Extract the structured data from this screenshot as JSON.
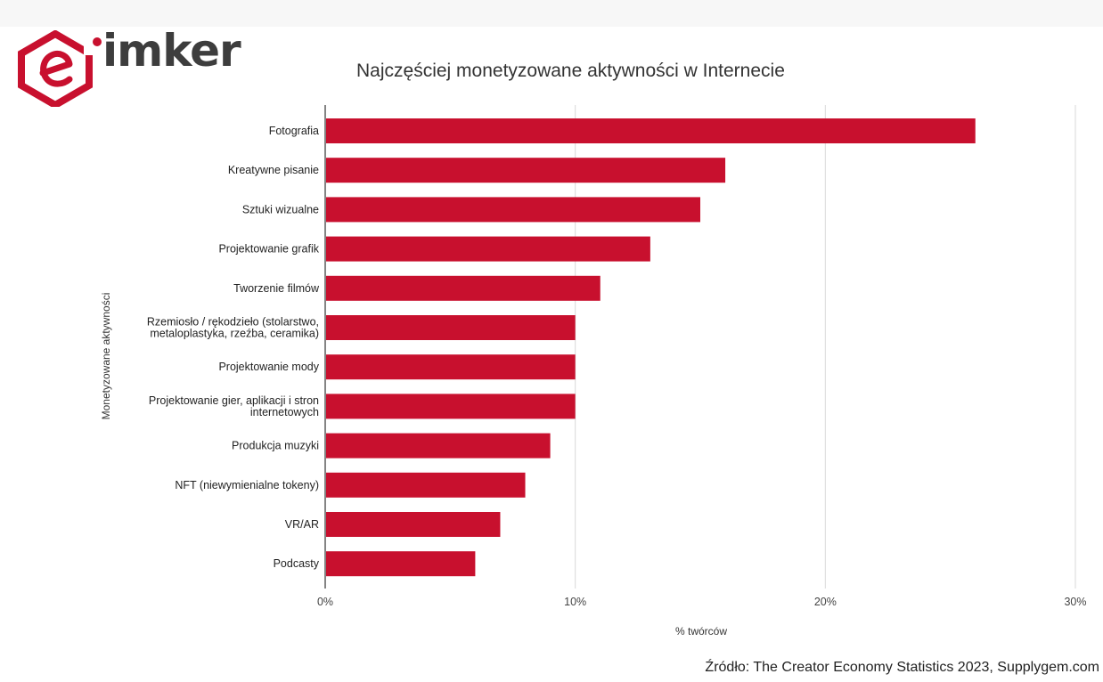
{
  "brand": {
    "logo_text": "imker",
    "color": "#c8102e"
  },
  "source_note": "Źródło: The Creator Economy Statistics 2023, Supplygem.com",
  "chart_data": {
    "type": "bar",
    "orientation": "horizontal",
    "title": "Najczęściej monetyzowane aktywności w Internecie",
    "xlabel": "% twórców",
    "ylabel": "Monetyzowane aktywności",
    "categories": [
      "Fotografia",
      "Kreatywne pisanie",
      "Sztuki wizualne",
      "Projektowanie grafik",
      "Tworzenie filmów",
      "Rzemiosło / rękodzieło (stolarstwo,\nmetaloplastyka, rzeźba, ceramika)",
      "Projektowanie mody",
      "Projektowanie gier, aplikacji i stron\ninternetowych",
      "Produkcja muzyki",
      "NFT (niewymienialne tokeny)",
      "VR/AR",
      "Podcasty"
    ],
    "values": [
      26,
      16,
      15,
      13,
      11,
      10,
      10,
      10,
      9,
      8,
      7,
      6
    ],
    "xlim": [
      0,
      30
    ],
    "xticks": [
      0,
      10,
      20,
      30
    ],
    "xtick_labels": [
      "0%",
      "10%",
      "20%",
      "30%"
    ],
    "grid": true,
    "bar_color": "#c8102e"
  }
}
